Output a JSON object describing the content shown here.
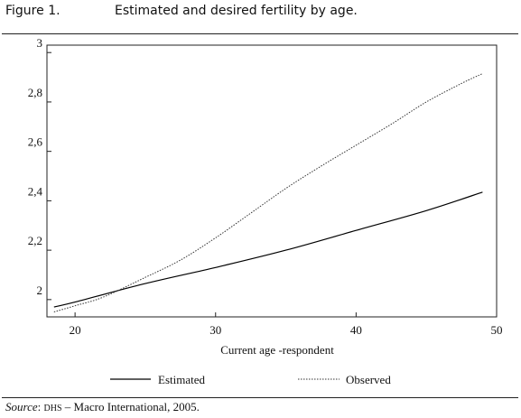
{
  "header": {
    "figure_label": "Figure 1.",
    "title": "Estimated and desired fertility by age."
  },
  "source": {
    "label": "Source",
    "org": "DHS",
    "text": " – Macro International, 2005."
  },
  "chart_data": {
    "type": "line",
    "title": "Estimated and desired fertility by age.",
    "xlabel": "Current age -respondent",
    "ylabel": "",
    "xlim": [
      18,
      50
    ],
    "ylim": [
      1.93,
      3.03
    ],
    "x_ticks": [
      20,
      30,
      40,
      50
    ],
    "x_tick_labels": [
      "20",
      "30",
      "40",
      "50"
    ],
    "y_ticks": [
      2.0,
      2.2,
      2.4,
      2.6,
      2.8,
      3.0
    ],
    "y_tick_labels": [
      "2",
      "2,2",
      "2,4",
      "2,6",
      "2,8",
      "3"
    ],
    "grid": false,
    "legend_position": "bottom",
    "series": [
      {
        "name": "Estimated",
        "style": "solid",
        "color": "#000000",
        "x": [
          18.5,
          20,
          25,
          30,
          35,
          40,
          45,
          49
        ],
        "y": [
          1.97,
          1.99,
          2.065,
          2.13,
          2.2,
          2.28,
          2.36,
          2.435
        ]
      },
      {
        "name": "Observed",
        "style": "dotted",
        "color": "#333333",
        "x": [
          18.5,
          20,
          22,
          25,
          27.5,
          30,
          32.5,
          35,
          37.5,
          40,
          42.5,
          45,
          47.5,
          49
        ],
        "y": [
          1.95,
          1.975,
          2.01,
          2.09,
          2.16,
          2.25,
          2.35,
          2.45,
          2.54,
          2.625,
          2.71,
          2.8,
          2.875,
          2.915
        ]
      }
    ]
  }
}
